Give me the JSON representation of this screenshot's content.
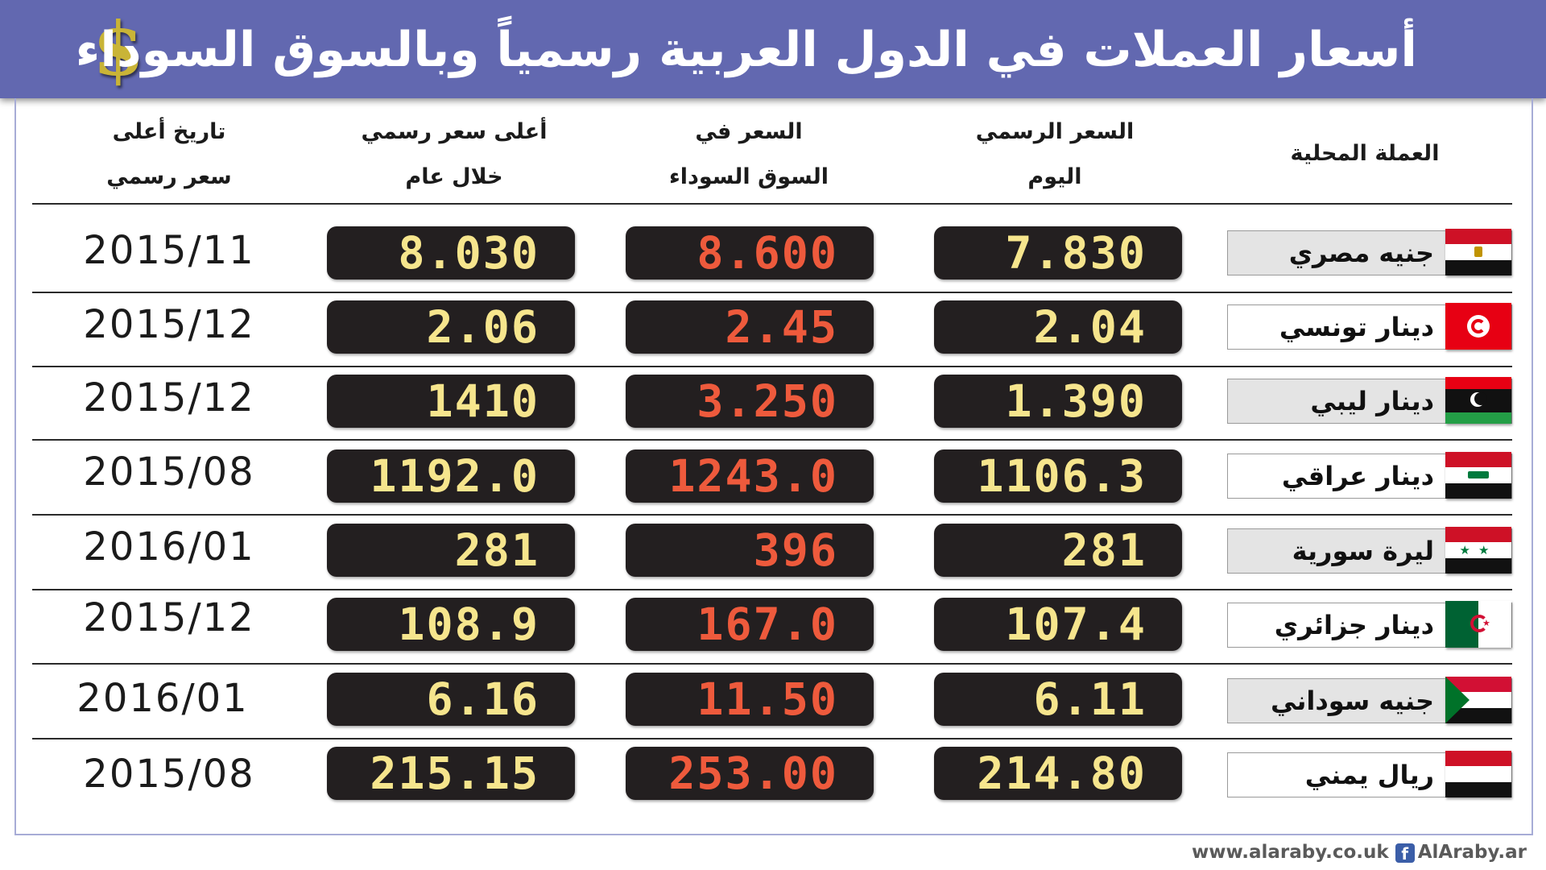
{
  "header": {
    "title": "أسعار العملات في الدول العربية رسمياً وبالسوق السوداء",
    "icon": "dollar-icon",
    "icon_glyph": "$",
    "background": "#6268b0"
  },
  "columns": {
    "currency": "العملة المحلية",
    "official_today_1": "السعر الرسمي",
    "official_today_2": "اليوم",
    "black_market_1": "السعر في",
    "black_market_2": "السوق السوداء",
    "year_high_1": "أعلى سعر رسمي",
    "year_high_2": "خلال عام",
    "high_date_1": "تاريخ أعلى",
    "high_date_2": "سعر رسمي"
  },
  "rows": [
    {
      "currency": "جنيه مصري",
      "official": "7.830",
      "black": "8.600",
      "high": "8.030",
      "date": "2015/11",
      "flag": "egypt-flag-icon"
    },
    {
      "currency": "دينار تونسي",
      "official": "2.04",
      "black": "2.45",
      "high": "2.06",
      "date": "2015/12",
      "flag": "tunisia-flag-icon"
    },
    {
      "currency": "دينار ليبي",
      "official": "1.390",
      "black": "3.250",
      "high": "1410",
      "date": "2015/12",
      "flag": "libya-flag-icon"
    },
    {
      "currency": "دينار عراقي",
      "official": "1106.3",
      "black": "1243.0",
      "high": "1192.0",
      "date": "2015/08",
      "flag": "iraq-flag-icon"
    },
    {
      "currency": "ليرة سورية",
      "official": "281",
      "black": "396",
      "high": "281",
      "date": "2016/01",
      "flag": "syria-flag-icon"
    },
    {
      "currency": "دينار جزائري",
      "official": "107.4",
      "black": "167.0",
      "high": "108.9",
      "date": "2015/12",
      "flag": "algeria-flag-icon"
    },
    {
      "currency": "جنيه سوداني",
      "official": "6.11",
      "black": "11.50",
      "high": "6.16",
      "date": "2016/01",
      "flag": "sudan-flag-icon"
    },
    {
      "currency": "ريال يمني",
      "official": "214.80",
      "black": "253.00",
      "high": "215.15",
      "date": "2015/08",
      "flag": "yemen-flag-icon"
    }
  ],
  "colors": {
    "official_value": "#f6e58d",
    "black_value": "#ee5a3c",
    "high_value": "#f6e58d",
    "pill_bg": "#231f20"
  },
  "footer": {
    "website": "www.alaraby.co.uk",
    "facebook_icon": "facebook-icon",
    "facebook_glyph": "f",
    "page": "AlAraby.ar"
  }
}
